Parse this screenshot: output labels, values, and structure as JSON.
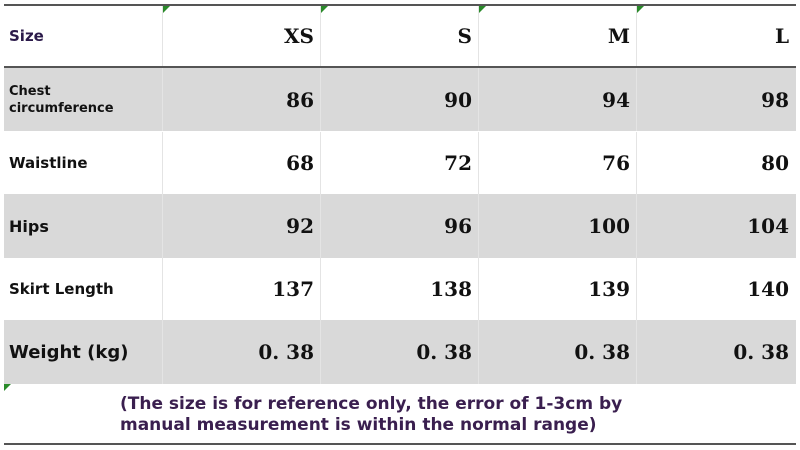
{
  "table": {
    "header": [
      "Size",
      "XS",
      "S",
      "M",
      "L"
    ],
    "rows": [
      [
        "Chest circumference",
        "86",
        "90",
        "94",
        "98"
      ],
      [
        "Waistline",
        "68",
        "72",
        "76",
        "80"
      ],
      [
        "Hips",
        "92",
        "96",
        "100",
        "104"
      ],
      [
        "Skirt Length",
        "137",
        "138",
        "139",
        "140"
      ],
      [
        "Weight (kg)",
        "0. 38",
        "0. 38",
        "0. 38",
        "0. 38"
      ]
    ],
    "note": "(The size is for reference only, the error of 1-3cm by manual measurement is within the normal range)"
  }
}
